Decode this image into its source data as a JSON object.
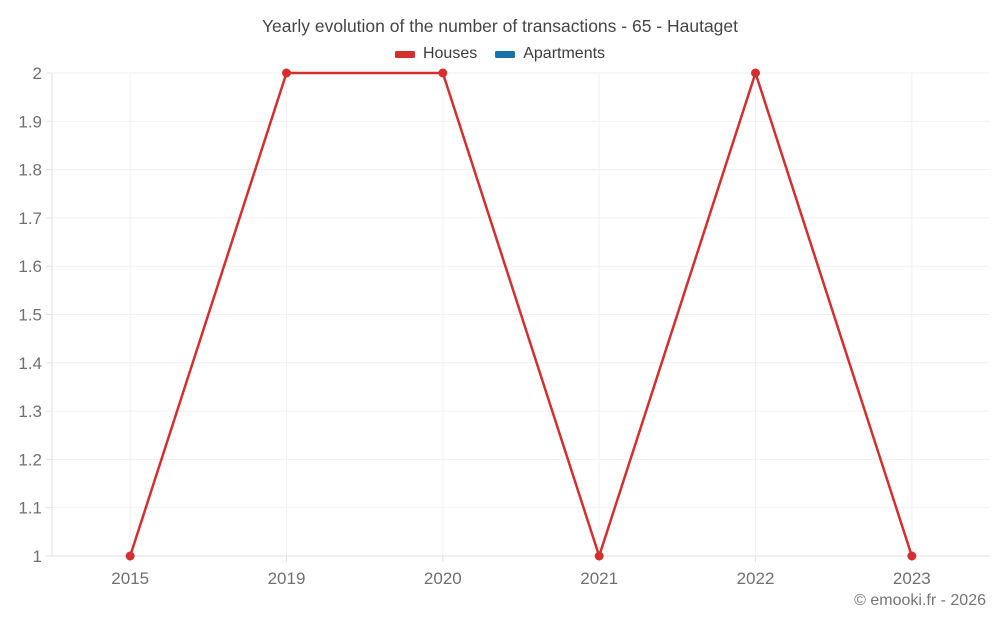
{
  "chart_data": {
    "type": "line",
    "title": "Yearly evolution of the number of transactions - 65 - Hautaget",
    "categories": [
      "2015",
      "2019",
      "2020",
      "2021",
      "2022",
      "2023"
    ],
    "series": [
      {
        "name": "Houses",
        "color": "#d32f2f",
        "values": [
          1,
          2,
          2,
          1,
          2,
          1
        ]
      },
      {
        "name": "Apartments",
        "color": "#1a73a8",
        "values": []
      }
    ],
    "xlabel": "",
    "ylabel": "",
    "ylim": [
      1,
      2
    ],
    "yticks": [
      {
        "value": 1,
        "label": "1"
      },
      {
        "value": 1.1,
        "label": "1.1"
      },
      {
        "value": 1.2,
        "label": "1.2"
      },
      {
        "value": 1.3,
        "label": "1.3"
      },
      {
        "value": 1.4,
        "label": "1.4"
      },
      {
        "value": 1.5,
        "label": "1.5"
      },
      {
        "value": 1.6,
        "label": "1.6"
      },
      {
        "value": 1.7,
        "label": "1.7"
      },
      {
        "value": 1.8,
        "label": "1.8"
      },
      {
        "value": 1.9,
        "label": "1.9"
      },
      {
        "value": 2,
        "label": "2"
      }
    ],
    "grid": true,
    "legend_position": "top"
  },
  "footer": {
    "copyright": "© emooki.fr - 2026"
  }
}
